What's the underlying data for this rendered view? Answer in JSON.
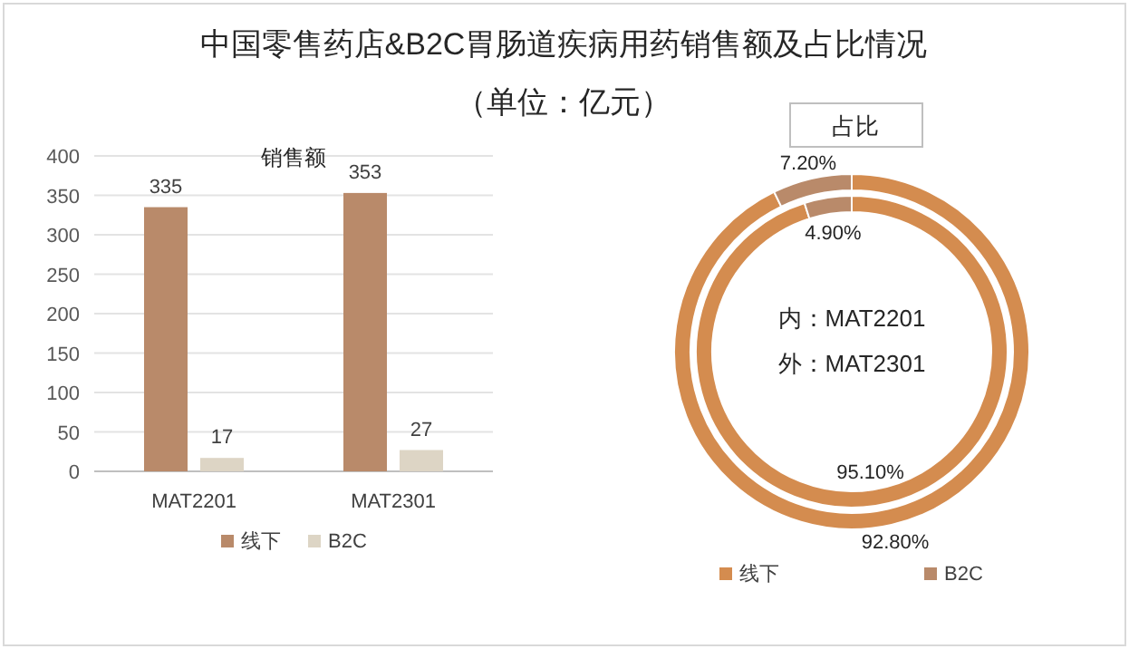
{
  "chart_data": [
    {
      "type": "bar",
      "title": "中国零售药店&B2C胃肠道疾病用药销售额及占比情况",
      "subtitle": "（单位：亿元）",
      "annotations": [
        "销售额"
      ],
      "categories": [
        "MAT2201",
        "MAT2301"
      ],
      "series": [
        {
          "name": "线下",
          "color": "#b98a6a",
          "values": [
            335,
            353
          ]
        },
        {
          "name": "B2C",
          "color": "#ddd5c5",
          "values": [
            17,
            27
          ]
        }
      ],
      "ylim": [
        0,
        400
      ],
      "yticks": [
        0,
        50,
        100,
        150,
        200,
        250,
        300,
        350,
        400
      ],
      "grid": "y",
      "legend": "bottom",
      "data_labels": true
    },
    {
      "type": "donut",
      "title": "占比",
      "annotations": [
        "内：MAT2201",
        "外：MAT2301"
      ],
      "categories": [
        "线下",
        "B2C"
      ],
      "colors": [
        "#d48c4f",
        "#b98a6a"
      ],
      "values": [
        95.1,
        4.9
      ],
      "value_labels": [
        "95.10%",
        "4.90%"
      ],
      "legend": "bottom"
    },
    {
      "type": "donut",
      "categories": [
        null,
        null
      ],
      "colors": [
        "#d48c4f",
        "#b98a6a"
      ],
      "values": [
        92.8,
        7.2
      ],
      "value_labels": [
        "92.80%",
        "7.20%"
      ]
    }
  ]
}
